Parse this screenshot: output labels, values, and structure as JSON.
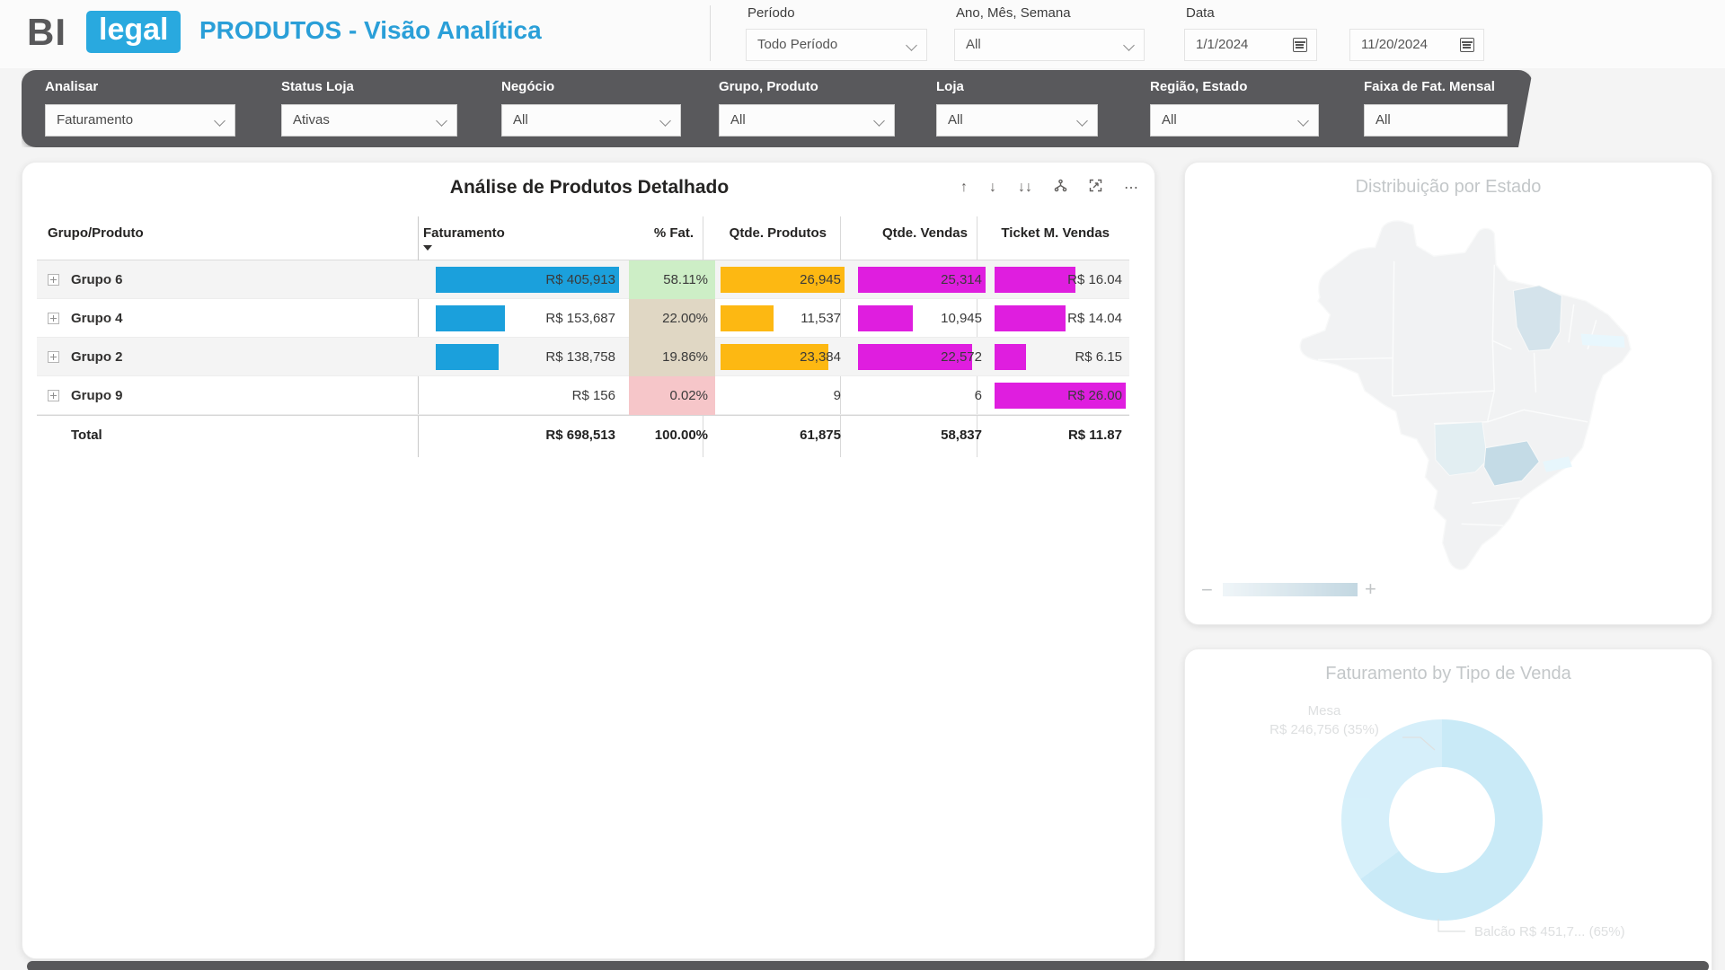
{
  "header": {
    "logo_bi": "BI",
    "logo_legal": "legal",
    "title": "PRODUTOS - Visão Analítica",
    "filters": {
      "periodo_label": "Período",
      "periodo_value": "Todo Período",
      "ano_label": "Ano, Mês, Semana",
      "ano_value": "All",
      "data_label": "Data",
      "data_start": "1/1/2024",
      "data_end": "11/20/2024"
    }
  },
  "filter_bar": {
    "items": [
      {
        "label": "Analisar",
        "value": "Faturamento"
      },
      {
        "label": "Status Loja",
        "value": "Ativas"
      },
      {
        "label": "Negócio",
        "value": "All"
      },
      {
        "label": "Grupo, Produto",
        "value": "All"
      },
      {
        "label": "Loja",
        "value": "All"
      },
      {
        "label": "Região, Estado",
        "value": "All"
      },
      {
        "label": "Faixa de Fat. Mensal",
        "value": "All"
      }
    ]
  },
  "table": {
    "title": "Análise de Produtos Detalhado",
    "toolbar_icons": [
      "drill-up",
      "drill-down",
      "go-to-next-level",
      "expand-all",
      "focus-mode",
      "more-options"
    ],
    "columns": [
      "Grupo/Produto",
      "Faturamento",
      "% Fat.",
      "Qtde. Produtos",
      "Qtde. Vendas",
      "Ticket M. Vendas"
    ],
    "col_group": "Grupo/Produto",
    "col_fat": "Faturamento",
    "col_pct": "% Fat.",
    "col_qp": "Qtde. Produtos",
    "col_qv": "Qtde. Vendas",
    "col_tk": "Ticket M. Vendas",
    "rows": [
      {
        "group": "Grupo 6",
        "faturamento": "R$ 405,913",
        "fat_bar": 100,
        "pct": "58.11%",
        "pct_bg": "#cdeec6",
        "qtde_produtos": "26,945",
        "qp_bar": 100,
        "qtde_vendas": "25,314",
        "qv_bar": 100,
        "ticket": "R$ 16.04",
        "tk_bar": 61.7
      },
      {
        "group": "Grupo 4",
        "faturamento": "R$ 153,687",
        "fat_bar": 37.9,
        "pct": "22.00%",
        "pct_bg": "#e0d7c4",
        "qtde_produtos": "11,537",
        "qp_bar": 42.8,
        "qtde_vendas": "10,945",
        "qv_bar": 43.2,
        "ticket": "R$ 14.04",
        "tk_bar": 54
      },
      {
        "group": "Grupo 2",
        "faturamento": "R$ 138,758",
        "fat_bar": 34.2,
        "pct": "19.86%",
        "pct_bg": "#e0d7c4",
        "qtde_produtos": "23,384",
        "qp_bar": 86.8,
        "qtde_vendas": "22,572",
        "qv_bar": 89.2,
        "ticket": "R$ 6.15",
        "tk_bar": 23.7
      },
      {
        "group": "Grupo 9",
        "faturamento": "R$ 156",
        "fat_bar": 0,
        "pct": "0.02%",
        "pct_bg": "#f6c6c9",
        "qtde_produtos": "9",
        "qp_bar": 0,
        "qtde_vendas": "6",
        "qv_bar": 0,
        "ticket": "R$ 26.00",
        "tk_bar": 100
      }
    ],
    "total": {
      "label": "Total",
      "faturamento": "R$ 698,513",
      "pct": "100.00%",
      "qtde_produtos": "61,875",
      "qtde_vendas": "58,837",
      "ticket": "R$ 11.87"
    }
  },
  "map_card": {
    "title": "Distribuição por Estado",
    "legend_minus": "−",
    "legend_plus": "+"
  },
  "donut_card": {
    "title": "Faturamento by Tipo de Venda",
    "mesa_name": "Mesa",
    "mesa_value": "R$ 246,756 (35%)",
    "balcao_label": "Balcão R$ 451,7... (65%)"
  },
  "colors": {
    "accent_blue": "#29a9df",
    "bar_blue": "#1ba0dc",
    "bar_orange": "#fdb812",
    "bar_magenta": "#df1edf",
    "pct_green": "#cdeec6",
    "pct_tan": "#e0d7c4",
    "pct_pink": "#f6c6c9",
    "dark_bar": "#59595c",
    "donut_blue": "#a6ddf3"
  },
  "chart_data": [
    {
      "type": "table",
      "title": "Análise de Produtos Detalhado",
      "columns": [
        "Grupo/Produto",
        "Faturamento",
        "% Fat.",
        "Qtde. Produtos",
        "Qtde. Vendas",
        "Ticket M. Vendas"
      ],
      "rows": [
        [
          "Grupo 6",
          405913,
          58.11,
          26945,
          25314,
          16.04
        ],
        [
          "Grupo 4",
          153687,
          22.0,
          11537,
          10945,
          14.04
        ],
        [
          "Grupo 2",
          138758,
          19.86,
          23384,
          22572,
          6.15
        ],
        [
          "Grupo 9",
          156,
          0.02,
          9,
          6,
          26.0
        ]
      ],
      "total": [
        "Total",
        698513,
        100.0,
        61875,
        58837,
        11.87
      ],
      "currency": "R$",
      "sorted_by": "Faturamento desc"
    },
    {
      "type": "heatmap",
      "subtype": "choropleth",
      "title": "Distribuição por Estado",
      "region": "Brazil",
      "legend": "sequential blue gradient, low (−) to high (+)",
      "highlighted_states_approx": [
        "Maranhão (medium)",
        "São Paulo (dark)",
        "Mato Grosso do Sul (light)",
        "northeast coastal strip (very light)",
        "Rio de Janeiro strip (very light)"
      ]
    },
    {
      "type": "pie",
      "subtype": "donut",
      "title": "Faturamento by Tipo de Venda",
      "categories": [
        "Balcão",
        "Mesa"
      ],
      "values_pct": [
        65,
        35
      ],
      "labels": [
        "Balcão R$ 451,7... (65%)",
        "Mesa R$ 246,756 (35%)"
      ],
      "mesa_value": 246756,
      "legend_position": "data labels with callouts"
    }
  ]
}
